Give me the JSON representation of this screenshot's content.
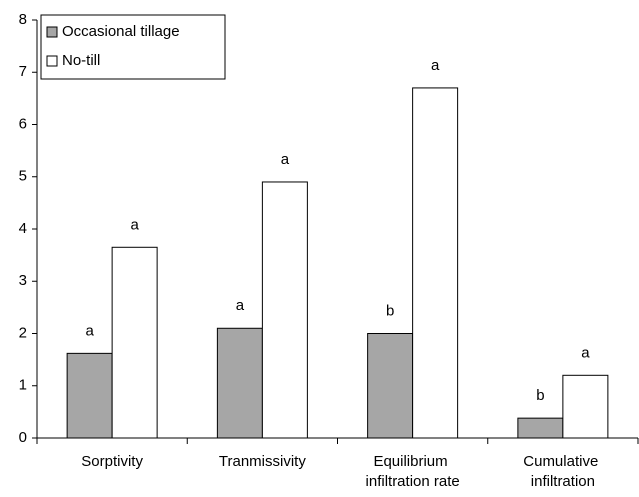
{
  "chart_data": {
    "type": "bar",
    "categories": [
      "Sorptivity",
      "Tranmissivity",
      "Equilibrium infiltration rate",
      "Cumulative infiltration"
    ],
    "series": [
      {
        "name": "Occasional tillage",
        "color": "#a6a6a6",
        "values": [
          1.62,
          2.1,
          2.0,
          0.38
        ],
        "annotations": [
          "a",
          "a",
          "b",
          "b"
        ]
      },
      {
        "name": "No-till",
        "color": "#ffffff",
        "values": [
          3.65,
          4.9,
          6.7,
          1.2
        ],
        "annotations": [
          "a",
          "a",
          "a",
          "a"
        ]
      }
    ],
    "ylim": [
      0,
      8
    ],
    "yticks": [
      0,
      1,
      2,
      3,
      4,
      5,
      6,
      7,
      8
    ],
    "grid": false,
    "legend": "top-left"
  }
}
